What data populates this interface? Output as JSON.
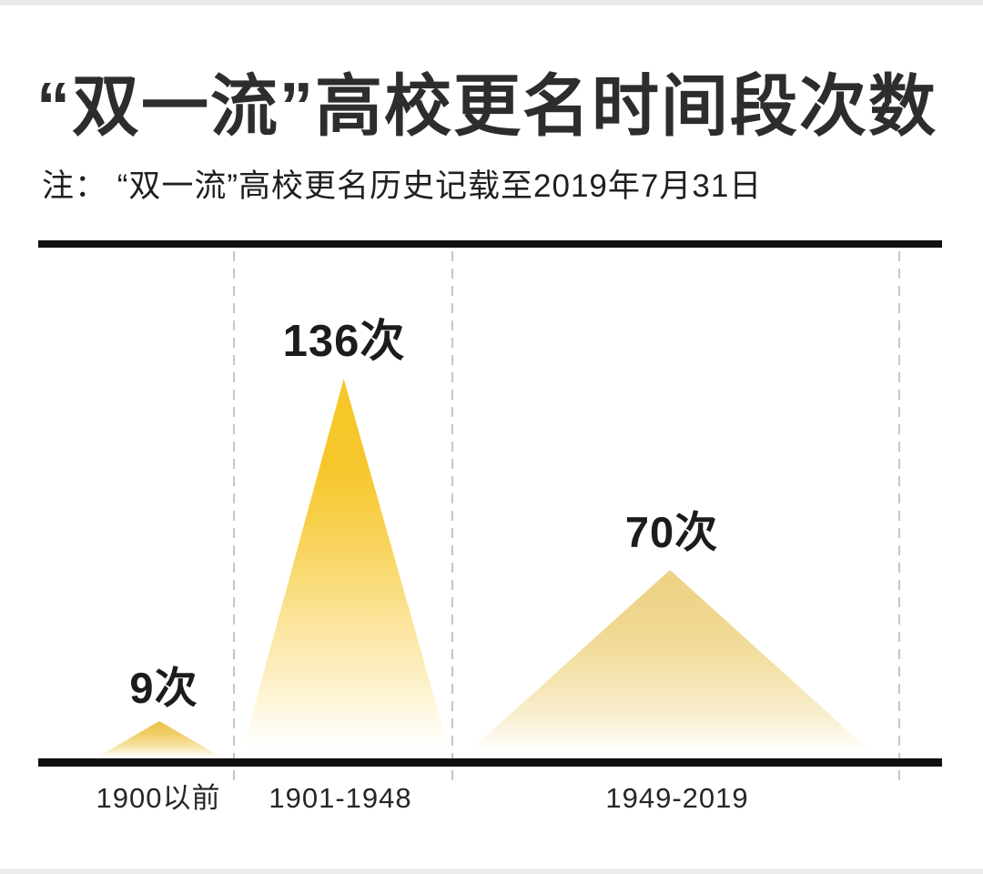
{
  "header": {
    "title": "“双一流”高校更名时间段次数",
    "note": "注：  “双一流”高校更名历史记载至2019年7月31日"
  },
  "chart_data": {
    "type": "bar",
    "style": "triangle-peak-infographic",
    "title": "“双一流”高校更名时间段次数",
    "note": "注：  “双一流”高校更名历史记载至2019年7月31日",
    "categories": [
      "1900以前",
      "1901-1948",
      "1949-2019"
    ],
    "values": [
      9,
      136,
      70
    ],
    "value_labels": [
      "9次",
      "136次",
      "70次"
    ],
    "unit": "次",
    "ylim": [
      0,
      150
    ],
    "grid": "dashed vertical section dividers",
    "legend": "none",
    "colors": {
      "peak_strong_yellow": "#f6c72c",
      "peak_small_gold": "#ecc24d",
      "peak_pale_yellow": "#edd285",
      "axis_line": "#101010",
      "divider_gray": "#c6c6c6",
      "text_dark": "#2d2d2d",
      "background": "#ffffff"
    }
  }
}
